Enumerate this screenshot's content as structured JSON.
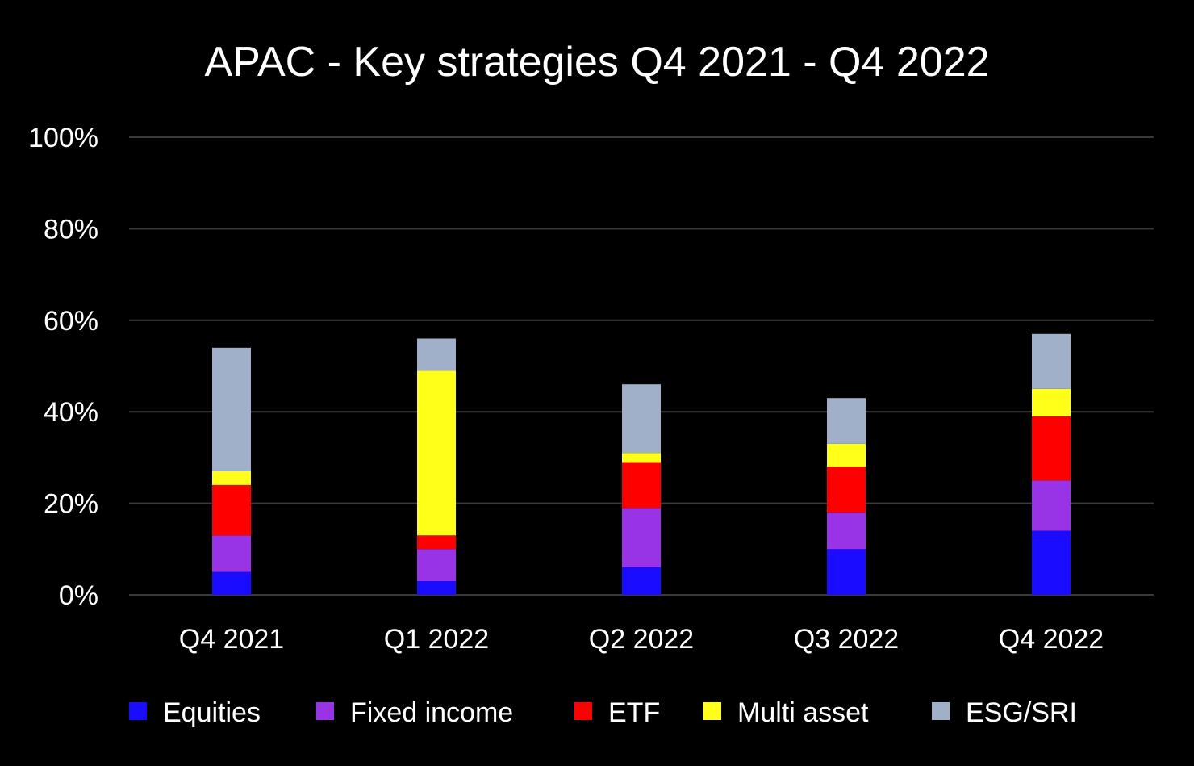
{
  "chart_data": {
    "type": "bar",
    "stacked": true,
    "title": "APAC - Key strategies Q4 2021 - Q4 2022",
    "xlabel": "",
    "ylabel": "",
    "ylim": [
      0,
      100
    ],
    "yticks": [
      "0%",
      "20%",
      "40%",
      "60%",
      "80%",
      "100%"
    ],
    "ytick_values": [
      0,
      20,
      40,
      60,
      80,
      100
    ],
    "grid": true,
    "legend_position": "bottom",
    "categories": [
      "Q4 2021",
      "Q1 2022",
      "Q2 2022",
      "Q3 2022",
      "Q4 2022"
    ],
    "series": [
      {
        "name": "Equities",
        "color": "#1a0dff",
        "values": [
          5,
          3,
          6,
          10,
          14
        ]
      },
      {
        "name": "Fixed income",
        "color": "#9933e6",
        "values": [
          8,
          7,
          13,
          8,
          11
        ]
      },
      {
        "name": "ETF",
        "color": "#ff0000",
        "values": [
          11,
          3,
          10,
          10,
          14
        ]
      },
      {
        "name": "Multi asset",
        "color": "#ffff1a",
        "values": [
          3,
          36,
          2,
          5,
          6
        ]
      },
      {
        "name": "ESG/SRI",
        "color": "#9fb0c8",
        "values": [
          27,
          7,
          15,
          10,
          12
        ]
      }
    ]
  }
}
